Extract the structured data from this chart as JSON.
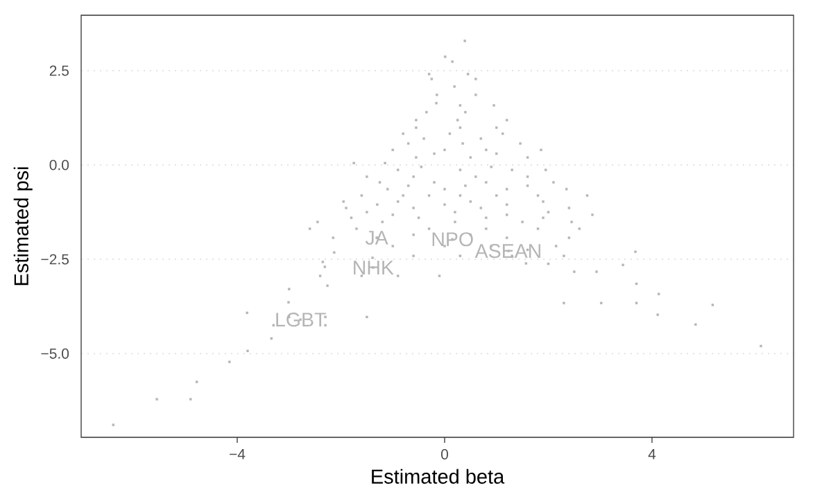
{
  "chart_data": {
    "type": "scatter",
    "xlabel": "Estimated beta",
    "ylabel": "Estimated psi",
    "x": [
      0.39,
      0.01,
      0.15,
      -0.3,
      0.45,
      -0.25,
      0.6,
      0.19,
      -0.15,
      0.6,
      -0.16,
      0.3,
      0.95,
      -0.35,
      0.4,
      -0.55,
      0.25,
      1.2,
      -0.55,
      0.3,
      1.0,
      -0.8,
      0.1,
      1.12,
      -0.7,
      0.35,
      1.46,
      -1.0,
      0.0,
      0.8,
      1.86,
      -0.55,
      0.5,
      1.6,
      -1.75,
      -1.15,
      -0.9,
      0.3,
      1.3,
      1.95,
      -0.6,
      0.6,
      -1.25,
      -0.2,
      0.8,
      2.1,
      -1.1,
      0.0,
      1.2,
      2.35,
      2.75,
      -0.3,
      1.0,
      -1.95,
      -0.9,
      0.5,
      1.9,
      -1.9,
      -0.6,
      0.7,
      2.4,
      -1.0,
      1.2,
      2.85,
      -2.45,
      -1.2,
      0.2,
      1.5,
      2.45,
      -2.6,
      -0.3,
      2.6,
      -2.15,
      -1.3,
      1.2,
      2.4,
      0.0,
      0.9,
      2.15,
      -2.13,
      3.68,
      -1.39,
      0.3,
      1.3,
      2.3,
      1.57,
      -2.35,
      -2.31,
      3.44,
      2.93,
      2.5,
      -2.4,
      -1.6,
      -0.9,
      -0.1,
      -2.26,
      -3.0,
      3.7,
      4.13,
      2.3,
      3.02,
      3.7,
      -3.01,
      -3.81,
      -3.0,
      -2.3,
      -1.5,
      4.11,
      -3.3,
      -2.3,
      4.84,
      -3.34,
      -3.8,
      -4.15,
      -4.78,
      -5.55,
      -4.9,
      -6.39,
      5.17,
      6.1,
      -0.4,
      0.7,
      -0.2,
      1.0,
      -0.45,
      0.9,
      -1.5,
      1.6,
      -0.7,
      0.4,
      1.6,
      -1.6,
      -0.8,
      0.3,
      1.8,
      -1.3,
      0.0,
      1.2,
      -1.5,
      0.2,
      2.0,
      -1.8,
      -0.5,
      0.8,
      1.9,
      -1.7,
      0.8,
      1.8,
      -0.6,
      0.5,
      -1.0,
      1.6,
      -0.6,
      2.0,
      0.15,
      1.23,
      -1.31,
      -1.38,
      -2.78
    ],
    "values": [
      3.29,
      2.87,
      2.74,
      2.41,
      2.41,
      2.28,
      2.28,
      2.08,
      1.86,
      1.86,
      1.64,
      1.58,
      1.58,
      1.4,
      1.4,
      1.19,
      1.19,
      1.19,
      0.99,
      0.99,
      0.99,
      0.83,
      0.83,
      0.83,
      0.57,
      0.57,
      0.57,
      0.4,
      0.4,
      0.4,
      0.4,
      0.2,
      0.2,
      0.2,
      0.05,
      0.05,
      -0.13,
      -0.13,
      -0.13,
      -0.13,
      -0.31,
      -0.31,
      -0.46,
      -0.46,
      -0.46,
      -0.46,
      -0.64,
      -0.64,
      -0.64,
      -0.64,
      -0.81,
      -0.81,
      -0.81,
      -0.97,
      -0.97,
      -0.97,
      -0.97,
      -1.14,
      -1.14,
      -1.14,
      -1.14,
      -1.32,
      -1.32,
      -1.32,
      -1.51,
      -1.51,
      -1.51,
      -1.51,
      -1.51,
      -1.69,
      -1.69,
      -1.69,
      -1.93,
      -1.93,
      -1.93,
      -1.93,
      -2.15,
      -2.15,
      -2.15,
      -2.32,
      -2.3,
      -2.46,
      -2.41,
      -2.41,
      -2.41,
      -2.61,
      -2.57,
      -2.7,
      -2.65,
      -2.83,
      -2.83,
      -2.94,
      -2.94,
      -2.94,
      -2.94,
      -3.2,
      -3.29,
      -3.15,
      -3.42,
      -3.66,
      -3.66,
      -3.66,
      -3.64,
      -3.92,
      -4.03,
      -4.03,
      -4.03,
      -3.97,
      -4.25,
      -4.25,
      -4.23,
      -4.6,
      -4.93,
      -5.22,
      -5.75,
      -6.21,
      -6.21,
      -6.89,
      -3.71,
      -4.8,
      0.7,
      0.7,
      0.3,
      0.3,
      -0.05,
      -0.05,
      -0.31,
      -0.31,
      -0.55,
      -0.55,
      -0.55,
      -0.81,
      -0.81,
      -0.81,
      -0.81,
      -1.05,
      -1.05,
      -1.05,
      -1.25,
      -1.25,
      -1.25,
      -1.4,
      -1.4,
      -1.4,
      -1.4,
      -1.69,
      -1.69,
      -1.69,
      -1.85,
      -1.85,
      -2.15,
      -2.25,
      -2.41,
      -2.62,
      -1.97,
      -2.28,
      -1.93,
      -2.72,
      -4.1
    ],
    "color": "#b5b5b5",
    "marker": "square",
    "xlim": [
      -7.01,
      6.73
    ],
    "ylim": [
      -7.22,
      3.97
    ],
    "xticks": [
      {
        "value": -4,
        "label": "−4"
      },
      0,
      4
    ],
    "yticks": [
      {
        "value": -5,
        "label": "−5.0"
      },
      {
        "value": -2.5,
        "label": "−2.5"
      },
      {
        "value": 0,
        "label": "0.0"
      },
      {
        "value": 2.5,
        "label": "2.5"
      }
    ],
    "grid": "y",
    "annotations": [
      {
        "text": "NPO",
        "x": 0.15,
        "y": -1.97
      },
      {
        "text": "ASEAN",
        "x": 1.23,
        "y": -2.28
      },
      {
        "text": "JA",
        "x": -1.31,
        "y": -1.93
      },
      {
        "text": "NHK",
        "x": -1.38,
        "y": -2.72
      },
      {
        "text": "LGBT",
        "x": -2.78,
        "y": -4.1
      }
    ]
  }
}
